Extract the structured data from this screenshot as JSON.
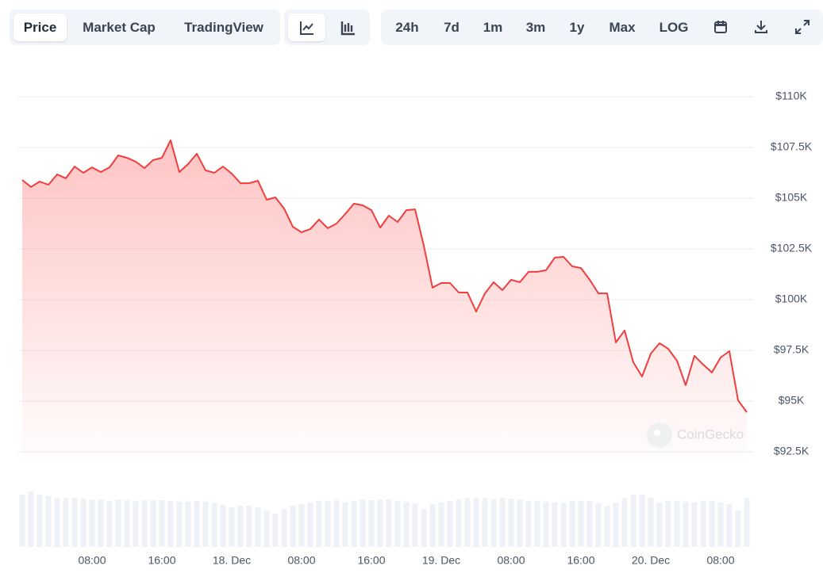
{
  "toolbar": {
    "views": [
      "Price",
      "Market Cap",
      "TradingView"
    ],
    "ranges": [
      "24h",
      "7d",
      "1m",
      "3m",
      "1y",
      "Max",
      "LOG"
    ]
  },
  "watermark": "CoinGecko",
  "chart_data": {
    "type": "line",
    "categories": [
      null,
      null,
      null,
      null,
      null,
      null,
      null,
      null,
      "08:00",
      null,
      null,
      null,
      null,
      null,
      null,
      null,
      "16:00",
      null,
      null,
      null,
      null,
      null,
      null,
      null,
      "18. Dec",
      null,
      null,
      null,
      null,
      null,
      null,
      null,
      "08:00",
      null,
      null,
      null,
      null,
      null,
      null,
      null,
      "16:00",
      null,
      null,
      null,
      null,
      null,
      null,
      null,
      "19. Dec",
      null,
      null,
      null,
      null,
      null,
      null,
      null,
      "08:00",
      null,
      null,
      null,
      null,
      null,
      null,
      null,
      "16:00",
      null,
      null,
      null,
      null,
      null,
      null,
      null,
      "20. Dec",
      null,
      null,
      null,
      null,
      null,
      null,
      null,
      "08:00",
      null,
      null,
      null
    ],
    "values": [
      105900,
      105550,
      105820,
      105660,
      106170,
      105980,
      106560,
      106250,
      106520,
      106290,
      106520,
      107110,
      106990,
      106800,
      106480,
      106880,
      106990,
      107850,
      106290,
      106680,
      107190,
      106370,
      106250,
      106560,
      106210,
      105740,
      105740,
      105860,
      104920,
      105040,
      104490,
      103590,
      103320,
      103480,
      103950,
      103520,
      103750,
      104220,
      104730,
      104650,
      104410,
      103550,
      104140,
      103830,
      104410,
      104450,
      102660,
      100590,
      100820,
      100820,
      100350,
      100350,
      99410,
      100310,
      100860,
      100470,
      100980,
      100860,
      101370,
      101370,
      101450,
      102070,
      102110,
      101640,
      101560,
      100980,
      100310,
      100310,
      97890,
      98480,
      96910,
      96210,
      97340,
      97850,
      97580,
      96990,
      95780,
      97230,
      96800,
      96410,
      97150,
      97460,
      95040,
      94450
    ],
    "color": "#f03e3e",
    "volume": {
      "color": "#eef1f5",
      "values": [
        66,
        70,
        66,
        64,
        62,
        62,
        62,
        61,
        60,
        60,
        58,
        60,
        59,
        58,
        59,
        59,
        59,
        58,
        57,
        57,
        58,
        57,
        56,
        53,
        50,
        52,
        52,
        50,
        46,
        42,
        48,
        52,
        54,
        56,
        58,
        58,
        59,
        56,
        58,
        60,
        59,
        60,
        60,
        58,
        57,
        55,
        48,
        54,
        56,
        58,
        60,
        62,
        62,
        62,
        60,
        62,
        61,
        60,
        58,
        58,
        57,
        56,
        56,
        58,
        58,
        58,
        55,
        52,
        56,
        62,
        66,
        66,
        62,
        56,
        58,
        58,
        57,
        56,
        58,
        58,
        56,
        54,
        46,
        62
      ]
    },
    "ylim": [
      92500,
      110000
    ],
    "yticks": [
      {
        "value": 92500,
        "label": "$92.5K"
      },
      {
        "value": 95000,
        "label": "$95K"
      },
      {
        "value": 97500,
        "label": "$97.5K"
      },
      {
        "value": 100000,
        "label": "$100K"
      },
      {
        "value": 102500,
        "label": "$102.5K"
      },
      {
        "value": 105000,
        "label": "$105K"
      },
      {
        "value": 107500,
        "label": "$107.5K"
      },
      {
        "value": 110000,
        "label": "$110K"
      }
    ],
    "grid": true
  }
}
